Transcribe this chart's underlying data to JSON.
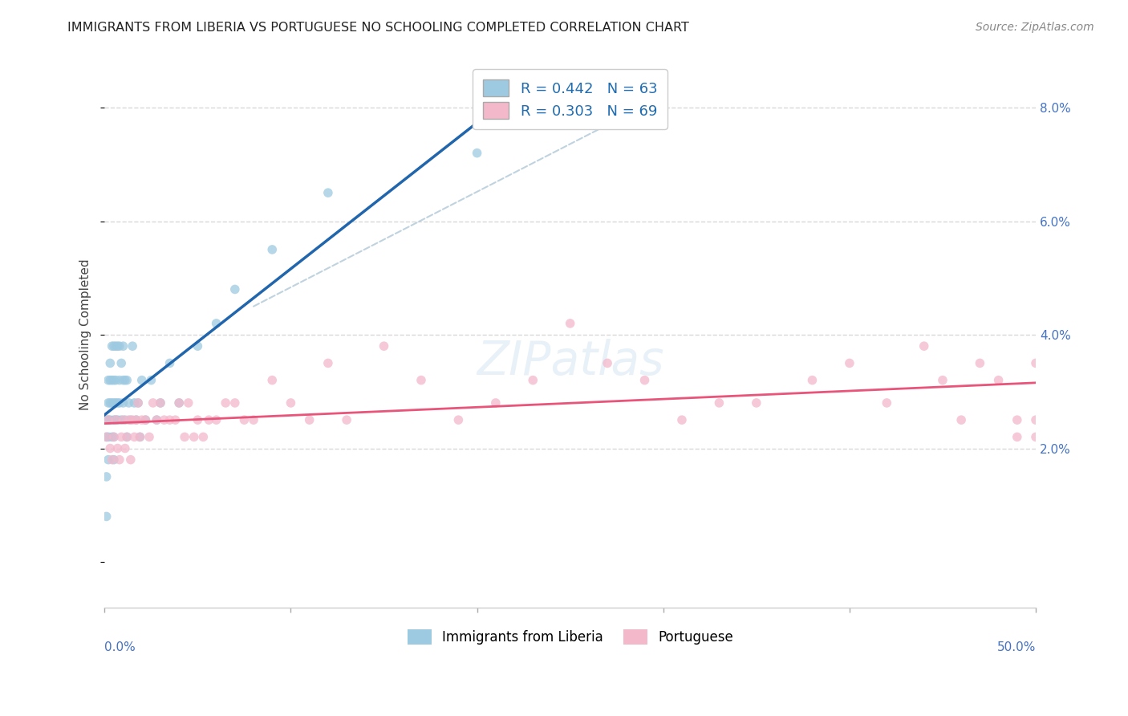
{
  "title": "IMMIGRANTS FROM LIBERIA VS PORTUGUESE NO SCHOOLING COMPLETED CORRELATION CHART",
  "source": "Source: ZipAtlas.com",
  "ylabel": "No Schooling Completed",
  "right_yticks": [
    "2.0%",
    "4.0%",
    "6.0%",
    "8.0%"
  ],
  "right_ytick_vals": [
    0.02,
    0.04,
    0.06,
    0.08
  ],
  "xlim": [
    0.0,
    0.5
  ],
  "ylim": [
    -0.008,
    0.088
  ],
  "color_blue": "#9ecae1",
  "color_pink": "#f4b8cb",
  "color_blue_line": "#2166ac",
  "color_pink_line": "#e8547a",
  "color_dash": "#aac8d8",
  "background": "#ffffff",
  "grid_color": "#d8d8d8",
  "liberia_x": [
    0.001,
    0.001,
    0.001,
    0.001,
    0.002,
    0.002,
    0.002,
    0.002,
    0.002,
    0.003,
    0.003,
    0.003,
    0.003,
    0.004,
    0.004,
    0.004,
    0.004,
    0.005,
    0.005,
    0.005,
    0.005,
    0.005,
    0.005,
    0.006,
    0.006,
    0.006,
    0.006,
    0.007,
    0.007,
    0.007,
    0.008,
    0.008,
    0.008,
    0.009,
    0.009,
    0.01,
    0.01,
    0.01,
    0.011,
    0.011,
    0.012,
    0.012,
    0.013,
    0.014,
    0.015,
    0.016,
    0.017,
    0.018,
    0.019,
    0.02,
    0.022,
    0.025,
    0.028,
    0.03,
    0.035,
    0.04,
    0.05,
    0.06,
    0.07,
    0.09,
    0.12,
    0.2
  ],
  "liberia_y": [
    0.008,
    0.015,
    0.022,
    0.025,
    0.018,
    0.022,
    0.025,
    0.028,
    0.032,
    0.025,
    0.028,
    0.032,
    0.035,
    0.022,
    0.028,
    0.032,
    0.038,
    0.018,
    0.022,
    0.025,
    0.028,
    0.032,
    0.038,
    0.025,
    0.028,
    0.032,
    0.038,
    0.025,
    0.028,
    0.038,
    0.028,
    0.032,
    0.038,
    0.025,
    0.035,
    0.028,
    0.032,
    0.038,
    0.025,
    0.032,
    0.022,
    0.032,
    0.028,
    0.025,
    0.038,
    0.028,
    0.025,
    0.028,
    0.022,
    0.032,
    0.025,
    0.032,
    0.025,
    0.028,
    0.035,
    0.028,
    0.038,
    0.042,
    0.048,
    0.055,
    0.065,
    0.072
  ],
  "portuguese_x": [
    0.001,
    0.002,
    0.003,
    0.004,
    0.005,
    0.006,
    0.007,
    0.008,
    0.009,
    0.01,
    0.011,
    0.012,
    0.013,
    0.014,
    0.015,
    0.016,
    0.017,
    0.018,
    0.019,
    0.02,
    0.022,
    0.024,
    0.026,
    0.028,
    0.03,
    0.032,
    0.035,
    0.038,
    0.04,
    0.043,
    0.045,
    0.048,
    0.05,
    0.053,
    0.056,
    0.06,
    0.065,
    0.07,
    0.075,
    0.08,
    0.09,
    0.1,
    0.11,
    0.12,
    0.13,
    0.15,
    0.17,
    0.19,
    0.21,
    0.23,
    0.25,
    0.27,
    0.29,
    0.31,
    0.33,
    0.35,
    0.38,
    0.4,
    0.42,
    0.44,
    0.45,
    0.46,
    0.47,
    0.48,
    0.49,
    0.49,
    0.5,
    0.5,
    0.5
  ],
  "portuguese_y": [
    0.022,
    0.025,
    0.02,
    0.018,
    0.022,
    0.025,
    0.02,
    0.018,
    0.022,
    0.025,
    0.02,
    0.022,
    0.025,
    0.018,
    0.025,
    0.022,
    0.025,
    0.028,
    0.022,
    0.025,
    0.025,
    0.022,
    0.028,
    0.025,
    0.028,
    0.025,
    0.025,
    0.025,
    0.028,
    0.022,
    0.028,
    0.022,
    0.025,
    0.022,
    0.025,
    0.025,
    0.028,
    0.028,
    0.025,
    0.025,
    0.032,
    0.028,
    0.025,
    0.035,
    0.025,
    0.038,
    0.032,
    0.025,
    0.028,
    0.032,
    0.042,
    0.035,
    0.032,
    0.025,
    0.028,
    0.028,
    0.032,
    0.035,
    0.028,
    0.038,
    0.032,
    0.025,
    0.035,
    0.032,
    0.022,
    0.025,
    0.035,
    0.025,
    0.022
  ]
}
